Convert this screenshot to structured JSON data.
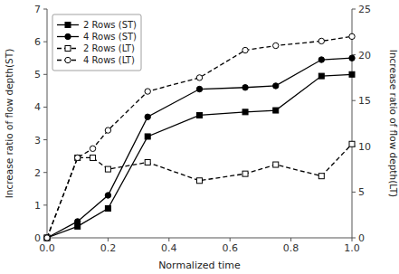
{
  "chart_data": {
    "type": "line",
    "xlabel": "Normalized time",
    "ylabel": "Increase ratio of flow depth(ST)",
    "y2label": "Increase ratio of flow depth(LT)",
    "xlim": [
      0.0,
      1.0
    ],
    "xticks": [
      {
        "value": 0.0,
        "label": "0.0"
      },
      0.2,
      0.4,
      0.6,
      0.8,
      {
        "value": 1.0,
        "label": "1.0"
      }
    ],
    "ylim": [
      0,
      7
    ],
    "yticks": [
      0,
      1,
      2,
      3,
      4,
      5,
      6,
      7
    ],
    "y2lim": [
      0,
      25
    ],
    "y2ticks": [
      0,
      5,
      10,
      15,
      20,
      25
    ],
    "grid": false,
    "legend": "upper left",
    "series": [
      {
        "name": "2 Rows (ST)",
        "axis": "y",
        "color": "black",
        "marker": "square",
        "line_style": "solid",
        "x": [
          0.0,
          0.1,
          0.2,
          0.33,
          0.5,
          0.65,
          0.75,
          0.9,
          1.0
        ],
        "values": [
          0.0,
          0.35,
          0.9,
          3.1,
          3.75,
          3.85,
          3.9,
          4.95,
          5.0
        ]
      },
      {
        "name": "4 Rows (ST)",
        "axis": "y",
        "color": "black",
        "marker": "circle",
        "line_style": "solid",
        "x": [
          0.0,
          0.1,
          0.2,
          0.33,
          0.5,
          0.65,
          0.75,
          0.9,
          1.0
        ],
        "values": [
          0.0,
          0.5,
          1.3,
          3.7,
          4.55,
          4.6,
          4.65,
          5.45,
          5.5
        ]
      },
      {
        "name": "2 Rows (LT)",
        "axis": "y2",
        "color": "black",
        "marker": "open-square",
        "line_style": "dashed",
        "x": [
          0.0,
          0.1,
          0.15,
          0.2,
          0.33,
          0.5,
          0.65,
          0.75,
          0.9,
          1.0
        ],
        "values": [
          0.0,
          8.75,
          8.75,
          7.5,
          8.25,
          6.25,
          7.0,
          8.0,
          6.75,
          10.25
        ]
      },
      {
        "name": "4 Rows (LT)",
        "axis": "y2",
        "color": "black",
        "marker": "open-circle",
        "line_style": "dashed",
        "x": [
          0.0,
          0.1,
          0.15,
          0.2,
          0.33,
          0.5,
          0.65,
          0.75,
          0.9,
          1.0
        ],
        "values": [
          0.0,
          8.75,
          9.75,
          11.75,
          16.0,
          17.5,
          20.5,
          21.0,
          21.5,
          22.0
        ]
      }
    ]
  }
}
